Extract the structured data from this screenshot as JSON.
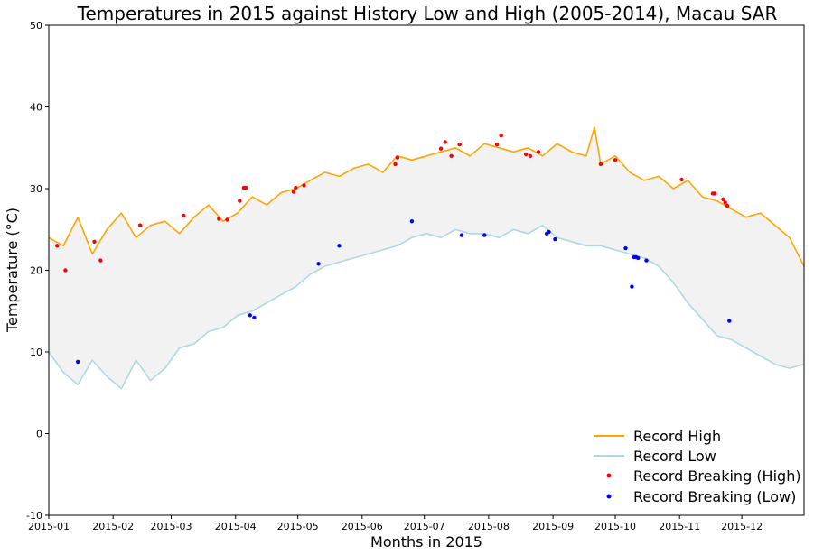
{
  "chart_data": {
    "type": "line",
    "title": "Temperatures in 2015 against History Low and High (2005-2014), Macau SAR",
    "xlabel": "Months in 2015",
    "ylabel": "Temperature (°C)",
    "xlim": [
      "2015-01-01",
      "2015-12-31"
    ],
    "ylim": [
      -10,
      50
    ],
    "y_ticks": [
      -10,
      0,
      10,
      20,
      30,
      40,
      50
    ],
    "x_ticks": [
      "2015-01",
      "2015-02",
      "2015-03",
      "2015-04",
      "2015-05",
      "2015-06",
      "2015-07",
      "2015-08",
      "2015-09",
      "2015-10",
      "2015-11",
      "2015-12"
    ],
    "grid": false,
    "legend_position": "lower-right",
    "series": [
      {
        "name": "Record High",
        "kind": "line",
        "color": "#ffa500",
        "points": [
          [
            "2015-01-01",
            24.0
          ],
          [
            "2015-01-08",
            23.0
          ],
          [
            "2015-01-15",
            26.5
          ],
          [
            "2015-01-22",
            22.0
          ],
          [
            "2015-01-29",
            25.0
          ],
          [
            "2015-02-05",
            27.0
          ],
          [
            "2015-02-12",
            24.0
          ],
          [
            "2015-02-19",
            25.5
          ],
          [
            "2015-02-26",
            26.0
          ],
          [
            "2015-03-05",
            24.5
          ],
          [
            "2015-03-12",
            26.5
          ],
          [
            "2015-03-19",
            28.0
          ],
          [
            "2015-03-26",
            26.0
          ],
          [
            "2015-04-02",
            27.0
          ],
          [
            "2015-04-09",
            29.0
          ],
          [
            "2015-04-16",
            28.0
          ],
          [
            "2015-04-23",
            29.5
          ],
          [
            "2015-04-30",
            30.0
          ],
          [
            "2015-05-07",
            31.0
          ],
          [
            "2015-05-14",
            32.0
          ],
          [
            "2015-05-21",
            31.5
          ],
          [
            "2015-05-28",
            32.5
          ],
          [
            "2015-06-04",
            33.0
          ],
          [
            "2015-06-11",
            32.0
          ],
          [
            "2015-06-18",
            34.0
          ],
          [
            "2015-06-25",
            33.5
          ],
          [
            "2015-07-02",
            34.0
          ],
          [
            "2015-07-09",
            34.5
          ],
          [
            "2015-07-16",
            35.0
          ],
          [
            "2015-07-23",
            34.0
          ],
          [
            "2015-07-30",
            35.5
          ],
          [
            "2015-08-06",
            35.0
          ],
          [
            "2015-08-13",
            34.5
          ],
          [
            "2015-08-20",
            35.0
          ],
          [
            "2015-08-27",
            34.0
          ],
          [
            "2015-09-03",
            35.5
          ],
          [
            "2015-09-10",
            34.5
          ],
          [
            "2015-09-17",
            34.0
          ],
          [
            "2015-09-21",
            37.5
          ],
          [
            "2015-09-24",
            33.0
          ],
          [
            "2015-10-01",
            34.0
          ],
          [
            "2015-10-08",
            32.0
          ],
          [
            "2015-10-15",
            31.0
          ],
          [
            "2015-10-22",
            31.5
          ],
          [
            "2015-10-29",
            30.0
          ],
          [
            "2015-11-05",
            31.0
          ],
          [
            "2015-11-12",
            29.0
          ],
          [
            "2015-11-19",
            28.5
          ],
          [
            "2015-11-26",
            27.5
          ],
          [
            "2015-12-03",
            26.5
          ],
          [
            "2015-12-10",
            27.0
          ],
          [
            "2015-12-17",
            25.5
          ],
          [
            "2015-12-24",
            24.0
          ],
          [
            "2015-12-31",
            20.5
          ]
        ]
      },
      {
        "name": "Record Low",
        "kind": "line",
        "color": "#add8e6",
        "points": [
          [
            "2015-01-01",
            10.0
          ],
          [
            "2015-01-08",
            7.5
          ],
          [
            "2015-01-15",
            6.0
          ],
          [
            "2015-01-22",
            9.0
          ],
          [
            "2015-01-29",
            7.0
          ],
          [
            "2015-02-05",
            5.5
          ],
          [
            "2015-02-12",
            9.0
          ],
          [
            "2015-02-19",
            6.5
          ],
          [
            "2015-02-26",
            8.0
          ],
          [
            "2015-03-05",
            10.5
          ],
          [
            "2015-03-12",
            11.0
          ],
          [
            "2015-03-19",
            12.5
          ],
          [
            "2015-03-26",
            13.0
          ],
          [
            "2015-04-02",
            14.5
          ],
          [
            "2015-04-09",
            15.0
          ],
          [
            "2015-04-16",
            16.0
          ],
          [
            "2015-04-23",
            17.0
          ],
          [
            "2015-04-30",
            18.0
          ],
          [
            "2015-05-07",
            19.5
          ],
          [
            "2015-05-14",
            20.5
          ],
          [
            "2015-05-21",
            21.0
          ],
          [
            "2015-05-28",
            21.5
          ],
          [
            "2015-06-04",
            22.0
          ],
          [
            "2015-06-11",
            22.5
          ],
          [
            "2015-06-18",
            23.0
          ],
          [
            "2015-06-25",
            24.0
          ],
          [
            "2015-07-02",
            24.5
          ],
          [
            "2015-07-09",
            24.0
          ],
          [
            "2015-07-16",
            25.0
          ],
          [
            "2015-07-23",
            24.5
          ],
          [
            "2015-07-30",
            24.5
          ],
          [
            "2015-08-06",
            24.0
          ],
          [
            "2015-08-13",
            25.0
          ],
          [
            "2015-08-20",
            24.5
          ],
          [
            "2015-08-27",
            25.5
          ],
          [
            "2015-09-03",
            24.0
          ],
          [
            "2015-09-10",
            23.5
          ],
          [
            "2015-09-17",
            23.0
          ],
          [
            "2015-09-24",
            23.0
          ],
          [
            "2015-10-01",
            22.5
          ],
          [
            "2015-10-08",
            22.0
          ],
          [
            "2015-10-15",
            21.5
          ],
          [
            "2015-10-22",
            20.5
          ],
          [
            "2015-10-29",
            18.5
          ],
          [
            "2015-11-05",
            16.0
          ],
          [
            "2015-11-12",
            14.0
          ],
          [
            "2015-11-19",
            12.0
          ],
          [
            "2015-11-26",
            11.5
          ],
          [
            "2015-12-03",
            10.5
          ],
          [
            "2015-12-10",
            9.5
          ],
          [
            "2015-12-17",
            8.5
          ],
          [
            "2015-12-24",
            8.0
          ],
          [
            "2015-12-31",
            8.5
          ]
        ]
      },
      {
        "name": "Record Breaking (High)",
        "kind": "scatter",
        "color": "#ff0000",
        "points": [
          [
            "2015-01-05",
            23.0
          ],
          [
            "2015-01-09",
            20.0
          ],
          [
            "2015-01-23",
            23.5
          ],
          [
            "2015-01-26",
            21.2
          ],
          [
            "2015-02-14",
            25.5
          ],
          [
            "2015-03-07",
            26.7
          ],
          [
            "2015-03-24",
            26.3
          ],
          [
            "2015-03-28",
            26.2
          ],
          [
            "2015-04-03",
            28.5
          ],
          [
            "2015-04-05",
            30.1
          ],
          [
            "2015-04-06",
            30.1
          ],
          [
            "2015-04-29",
            29.6
          ],
          [
            "2015-04-30",
            30.1
          ],
          [
            "2015-05-04",
            30.4
          ],
          [
            "2015-06-17",
            33.0
          ],
          [
            "2015-06-18",
            33.8
          ],
          [
            "2015-07-09",
            34.9
          ],
          [
            "2015-07-11",
            35.7
          ],
          [
            "2015-07-14",
            34.0
          ],
          [
            "2015-07-18",
            35.4
          ],
          [
            "2015-08-05",
            35.4
          ],
          [
            "2015-08-07",
            36.5
          ],
          [
            "2015-08-19",
            34.2
          ],
          [
            "2015-08-21",
            34.0
          ],
          [
            "2015-08-25",
            34.5
          ],
          [
            "2015-09-24",
            33.0
          ],
          [
            "2015-10-01",
            33.5
          ],
          [
            "2015-11-02",
            31.1
          ],
          [
            "2015-11-17",
            29.4
          ],
          [
            "2015-11-18",
            29.4
          ],
          [
            "2015-11-22",
            28.7
          ],
          [
            "2015-11-23",
            28.3
          ],
          [
            "2015-11-24",
            27.9
          ]
        ]
      },
      {
        "name": "Record Breaking (Low)",
        "kind": "scatter",
        "color": "#0000ff",
        "points": [
          [
            "2015-01-15",
            8.8
          ],
          [
            "2015-04-08",
            14.5
          ],
          [
            "2015-04-10",
            14.2
          ],
          [
            "2015-05-11",
            20.8
          ],
          [
            "2015-05-21",
            23.0
          ],
          [
            "2015-06-25",
            26.0
          ],
          [
            "2015-07-19",
            24.3
          ],
          [
            "2015-07-30",
            24.3
          ],
          [
            "2015-08-29",
            24.5
          ],
          [
            "2015-08-30",
            24.7
          ],
          [
            "2015-09-02",
            23.8
          ],
          [
            "2015-10-06",
            22.7
          ],
          [
            "2015-10-09",
            18.0
          ],
          [
            "2015-10-10",
            21.6
          ],
          [
            "2015-10-11",
            21.6
          ],
          [
            "2015-10-12",
            21.5
          ],
          [
            "2015-10-16",
            21.2
          ],
          [
            "2015-11-25",
            13.8
          ]
        ]
      }
    ]
  }
}
